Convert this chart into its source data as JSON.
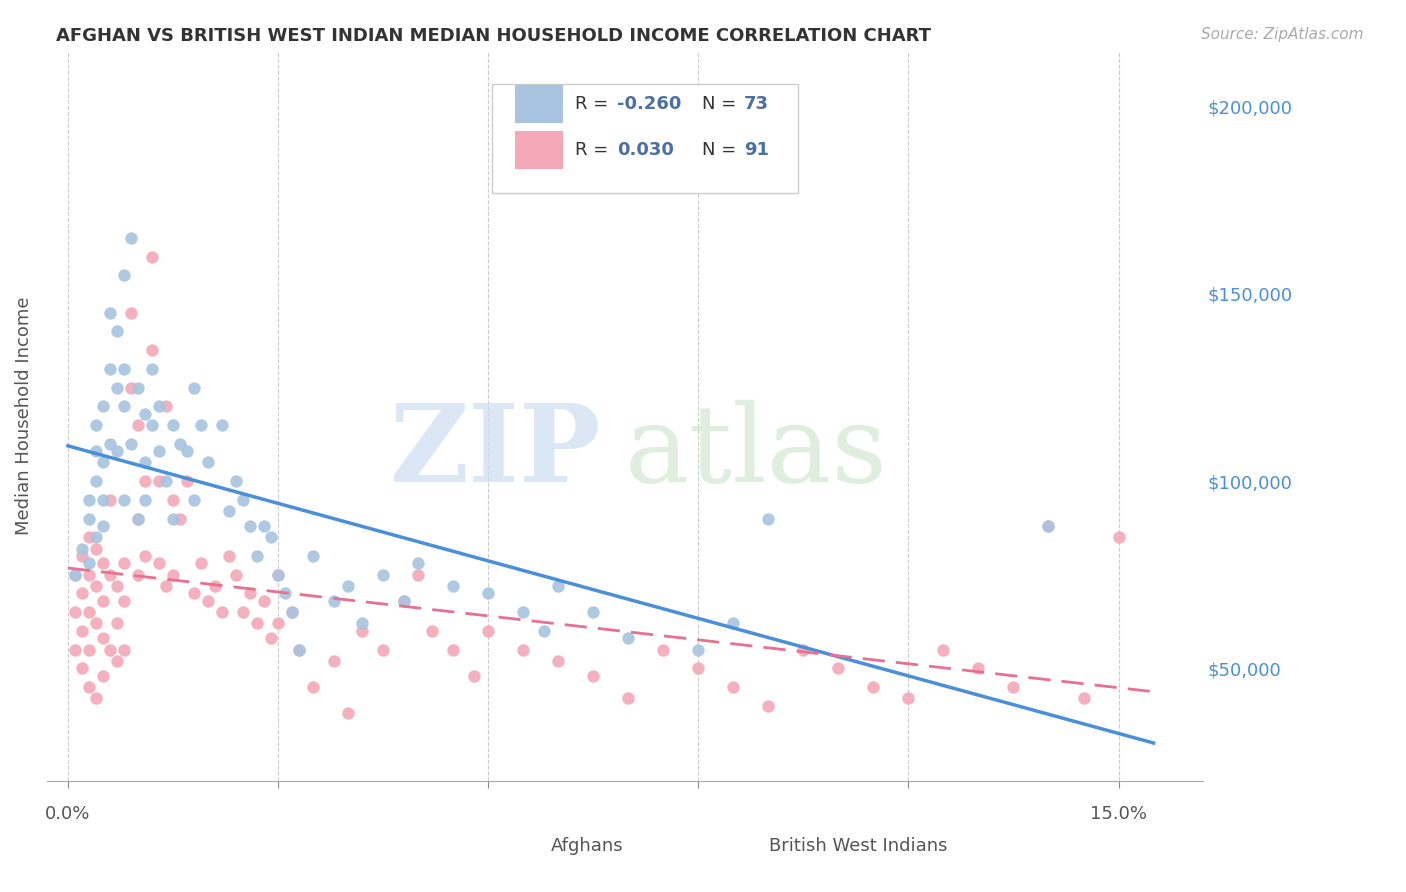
{
  "title": "AFGHAN VS BRITISH WEST INDIAN MEDIAN HOUSEHOLD INCOME CORRELATION CHART",
  "source": "Source: ZipAtlas.com",
  "ylabel": "Median Household Income",
  "afghan_color": "#a8c4e0",
  "bwi_color": "#f4a8b8",
  "afghan_line_color": "#4a90d9",
  "bwi_line_color": "#e87090",
  "legend_text_color": "#4a6fa5",
  "afghan_R": -0.26,
  "afghan_N": 73,
  "bwi_R": 0.03,
  "bwi_N": 91,
  "y_ticks": [
    50000,
    100000,
    150000,
    200000
  ],
  "y_tick_labels": [
    "$50,000",
    "$100,000",
    "$150,000",
    "$200,000"
  ],
  "ylim": [
    20000,
    215000
  ],
  "xlim_min": -0.003,
  "xlim_max": 0.162,
  "afghan_x": [
    0.001,
    0.002,
    0.003,
    0.003,
    0.003,
    0.004,
    0.004,
    0.004,
    0.004,
    0.005,
    0.005,
    0.005,
    0.005,
    0.006,
    0.006,
    0.006,
    0.007,
    0.007,
    0.007,
    0.008,
    0.008,
    0.008,
    0.008,
    0.009,
    0.009,
    0.01,
    0.01,
    0.011,
    0.011,
    0.011,
    0.012,
    0.012,
    0.013,
    0.013,
    0.014,
    0.015,
    0.015,
    0.016,
    0.017,
    0.018,
    0.018,
    0.019,
    0.02,
    0.022,
    0.023,
    0.024,
    0.025,
    0.026,
    0.027,
    0.028,
    0.029,
    0.03,
    0.031,
    0.032,
    0.033,
    0.035,
    0.038,
    0.04,
    0.042,
    0.045,
    0.048,
    0.05,
    0.055,
    0.06,
    0.065,
    0.068,
    0.07,
    0.075,
    0.08,
    0.09,
    0.095,
    0.1,
    0.14
  ],
  "afghan_y": [
    75000,
    82000,
    90000,
    78000,
    95000,
    115000,
    100000,
    108000,
    85000,
    120000,
    95000,
    88000,
    105000,
    130000,
    145000,
    110000,
    125000,
    140000,
    108000,
    155000,
    120000,
    130000,
    95000,
    165000,
    110000,
    125000,
    90000,
    118000,
    105000,
    95000,
    115000,
    130000,
    108000,
    120000,
    100000,
    115000,
    90000,
    110000,
    108000,
    125000,
    95000,
    115000,
    105000,
    115000,
    92000,
    100000,
    95000,
    88000,
    80000,
    88000,
    85000,
    75000,
    70000,
    65000,
    55000,
    80000,
    68000,
    72000,
    62000,
    75000,
    68000,
    78000,
    72000,
    70000,
    65000,
    60000,
    72000,
    65000,
    58000,
    55000,
    62000,
    90000,
    88000
  ],
  "bwi_x": [
    0.001,
    0.001,
    0.001,
    0.002,
    0.002,
    0.002,
    0.002,
    0.003,
    0.003,
    0.003,
    0.003,
    0.003,
    0.004,
    0.004,
    0.004,
    0.004,
    0.005,
    0.005,
    0.005,
    0.005,
    0.006,
    0.006,
    0.006,
    0.007,
    0.007,
    0.007,
    0.008,
    0.008,
    0.008,
    0.009,
    0.009,
    0.01,
    0.01,
    0.01,
    0.011,
    0.011,
    0.012,
    0.012,
    0.013,
    0.013,
    0.014,
    0.014,
    0.015,
    0.015,
    0.016,
    0.017,
    0.018,
    0.019,
    0.02,
    0.021,
    0.022,
    0.023,
    0.024,
    0.025,
    0.026,
    0.027,
    0.028,
    0.029,
    0.03,
    0.03,
    0.032,
    0.033,
    0.035,
    0.038,
    0.04,
    0.042,
    0.045,
    0.048,
    0.05,
    0.052,
    0.055,
    0.058,
    0.06,
    0.065,
    0.07,
    0.075,
    0.08,
    0.085,
    0.09,
    0.095,
    0.1,
    0.105,
    0.11,
    0.115,
    0.12,
    0.125,
    0.13,
    0.135,
    0.14,
    0.145,
    0.15
  ],
  "bwi_y": [
    75000,
    65000,
    55000,
    80000,
    70000,
    60000,
    50000,
    85000,
    75000,
    65000,
    55000,
    45000,
    82000,
    72000,
    62000,
    42000,
    78000,
    68000,
    58000,
    48000,
    95000,
    75000,
    55000,
    72000,
    62000,
    52000,
    68000,
    78000,
    55000,
    125000,
    145000,
    90000,
    75000,
    115000,
    100000,
    80000,
    160000,
    135000,
    100000,
    78000,
    120000,
    72000,
    95000,
    75000,
    90000,
    100000,
    70000,
    78000,
    68000,
    72000,
    65000,
    80000,
    75000,
    65000,
    70000,
    62000,
    68000,
    58000,
    75000,
    62000,
    65000,
    55000,
    45000,
    52000,
    38000,
    60000,
    55000,
    68000,
    75000,
    60000,
    55000,
    48000,
    60000,
    55000,
    52000,
    48000,
    42000,
    55000,
    50000,
    45000,
    40000,
    55000,
    50000,
    45000,
    42000,
    55000,
    50000,
    45000,
    88000,
    42000,
    85000
  ]
}
